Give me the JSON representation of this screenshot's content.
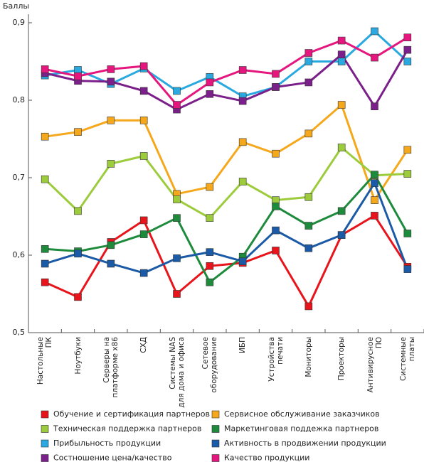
{
  "chart_data": {
    "type": "line",
    "y_label": "Баллы",
    "categories": [
      "Настольные\nПК",
      "Ноутбуки",
      "Серверы на\nплатформе x86",
      "СХД",
      "Системы NAS\nдля дома и офиса",
      "Сетевое\nоборудование",
      "ИБП",
      "Устройства\nпечати",
      "Мониторы",
      "Проекторы",
      "Антивирусное\nПО",
      "Системные\nплаты"
    ],
    "ylim": [
      0.5,
      0.9
    ],
    "yticks": [
      {
        "value": 0.5,
        "label": "0,5"
      },
      {
        "value": 0.6,
        "label": "0,6"
      },
      {
        "value": 0.7,
        "label": "0,7"
      },
      {
        "value": 0.8,
        "label": "0,8"
      },
      {
        "value": 0.9,
        "label": "0,9"
      }
    ],
    "series": [
      {
        "name": "Обучение и сертификация партнеров",
        "color": "#e8141b",
        "values": [
          0.565,
          0.546,
          0.617,
          0.645,
          0.55,
          0.586,
          0.59,
          0.606,
          0.534,
          0.626,
          0.651,
          0.585
        ]
      },
      {
        "name": "Сервисное обслуживание заказчиков",
        "color": "#f5a81c",
        "values": [
          0.753,
          0.759,
          0.774,
          0.774,
          0.679,
          0.688,
          0.746,
          0.731,
          0.757,
          0.794,
          0.671,
          0.736
        ]
      },
      {
        "name": "Техническая поддержка партнеров",
        "color": "#9ccc3c",
        "values": [
          0.698,
          0.657,
          0.718,
          0.728,
          0.672,
          0.648,
          0.695,
          0.671,
          0.675,
          0.739,
          0.703,
          0.705
        ]
      },
      {
        "name": "Маркетинговая поддежка партнеров",
        "color": "#1e8a3c",
        "values": [
          0.608,
          0.605,
          0.613,
          0.627,
          0.648,
          0.565,
          0.598,
          0.663,
          0.638,
          0.657,
          0.704,
          0.628
        ]
      },
      {
        "name": "Прибыльность продукции",
        "color": "#2aa9e0",
        "values": [
          0.832,
          0.839,
          0.821,
          0.841,
          0.812,
          0.83,
          0.805,
          0.817,
          0.85,
          0.85,
          0.889,
          0.85
        ]
      },
      {
        "name": "Активность в продвижении продукции",
        "color": "#1b5aa6",
        "values": [
          0.589,
          0.602,
          0.589,
          0.577,
          0.596,
          0.604,
          0.592,
          0.632,
          0.609,
          0.626,
          0.693,
          0.582
        ]
      },
      {
        "name": "Состношение цена/качество",
        "color": "#7b1f8a",
        "values": [
          0.835,
          0.825,
          0.824,
          0.812,
          0.788,
          0.808,
          0.799,
          0.817,
          0.823,
          0.859,
          0.792,
          0.865
        ]
      },
      {
        "name": "Качество продукции",
        "color": "#e5177e",
        "values": [
          0.84,
          0.831,
          0.84,
          0.844,
          0.794,
          0.823,
          0.839,
          0.834,
          0.861,
          0.877,
          0.855,
          0.881
        ]
      }
    ]
  }
}
